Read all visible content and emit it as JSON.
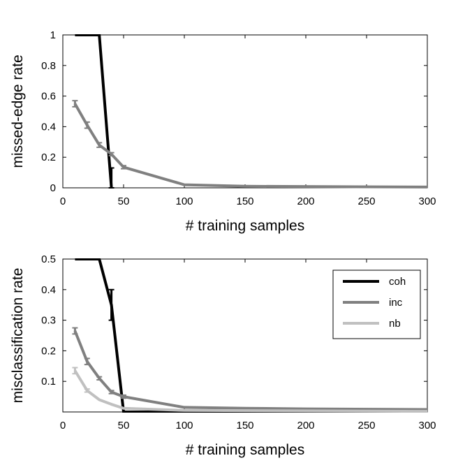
{
  "chart_data": [
    {
      "type": "line",
      "xlabel": "# training samples",
      "ylabel": "missed-edge rate",
      "xlim": [
        0,
        300
      ],
      "ylim": [
        0,
        1
      ],
      "xticks": [
        "0",
        "50",
        "100",
        "150",
        "200",
        "250",
        "300"
      ],
      "yticks": [
        "0",
        "0.2",
        "0.4",
        "0.6",
        "0.8",
        "1"
      ],
      "grid": false,
      "legend": false,
      "series": [
        {
          "color": "#000000",
          "points": [
            [
              10,
              1.0
            ],
            [
              20,
              1.0
            ],
            [
              30,
              1.0
            ],
            [
              40,
              0.0
            ]
          ],
          "errorbars": [
            [
              40,
              0.0,
              0.13
            ]
          ]
        },
        {
          "color": "#808080",
          "points": [
            [
              10,
              0.55
            ],
            [
              20,
              0.41
            ],
            [
              30,
              0.28
            ],
            [
              40,
              0.22
            ],
            [
              50,
              0.135
            ],
            [
              100,
              0.02
            ],
            [
              150,
              0.01
            ],
            [
              300,
              0.005
            ]
          ],
          "errorbars": [
            [
              10,
              0.53,
              0.57
            ],
            [
              20,
              0.39,
              0.43
            ],
            [
              30,
              0.265,
              0.295
            ],
            [
              40,
              0.21,
              0.23
            ],
            [
              50,
              0.125,
              0.145
            ]
          ]
        }
      ]
    },
    {
      "type": "line",
      "xlabel": "# training samples",
      "ylabel": "misclassification rate",
      "xlim": [
        0,
        300
      ],
      "ylim": [
        0,
        0.5
      ],
      "xticks": [
        "0",
        "50",
        "100",
        "150",
        "200",
        "250",
        "300"
      ],
      "yticks": [
        "0.1",
        "0.2",
        "0.3",
        "0.4",
        "0.5"
      ],
      "grid": false,
      "legend": "top-right",
      "series": [
        {
          "name": "coh",
          "color": "#000000",
          "points": [
            [
              10,
              0.5
            ],
            [
              20,
              0.5
            ],
            [
              30,
              0.5
            ],
            [
              40,
              0.35
            ],
            [
              50,
              0.0
            ],
            [
              100,
              0.0
            ],
            [
              300,
              0.0
            ]
          ],
          "errorbars": [
            [
              40,
              0.3,
              0.4
            ]
          ]
        },
        {
          "name": "inc",
          "color": "#808080",
          "points": [
            [
              10,
              0.265
            ],
            [
              20,
              0.165
            ],
            [
              30,
              0.11
            ],
            [
              40,
              0.065
            ],
            [
              50,
              0.05
            ],
            [
              100,
              0.015
            ],
            [
              150,
              0.012
            ],
            [
              200,
              0.01
            ],
            [
              300,
              0.008
            ]
          ],
          "errorbars": [
            [
              10,
              0.255,
              0.275
            ],
            [
              20,
              0.155,
              0.175
            ],
            [
              30,
              0.105,
              0.115
            ],
            [
              40,
              0.06,
              0.07
            ],
            [
              50,
              0.045,
              0.055
            ]
          ]
        },
        {
          "name": "nb",
          "color": "#c0c0c0",
          "points": [
            [
              10,
              0.135
            ],
            [
              20,
              0.07
            ],
            [
              30,
              0.04
            ],
            [
              40,
              0.025
            ],
            [
              50,
              0.012
            ],
            [
              100,
              0.005
            ],
            [
              300,
              0.002
            ]
          ],
          "errorbars": [
            [
              10,
              0.125,
              0.145
            ],
            [
              20,
              0.065,
              0.075
            ]
          ]
        }
      ]
    }
  ]
}
